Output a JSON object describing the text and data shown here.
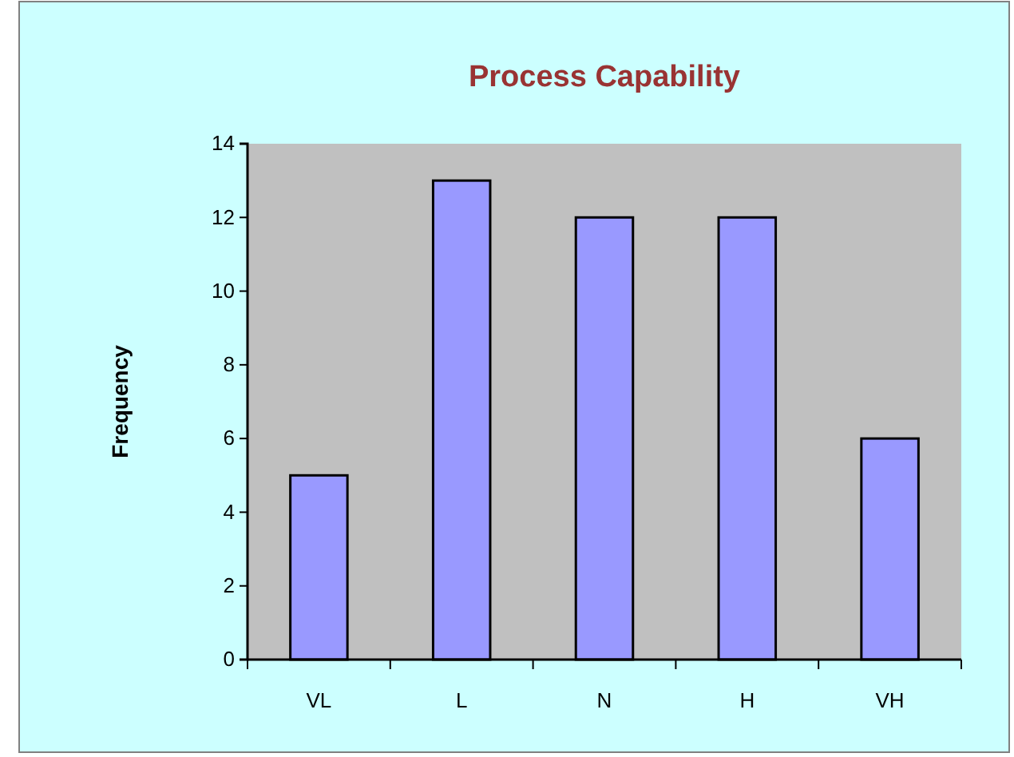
{
  "chart_data": {
    "type": "bar",
    "title": "Process Capability",
    "ylabel": "Frequency",
    "categories": [
      "VL",
      "L",
      "N",
      "H",
      "VH"
    ],
    "values": [
      5,
      13,
      12,
      12,
      6
    ],
    "color": "#9999ff",
    "ylim": [
      0,
      14
    ],
    "yticks": [
      0,
      2,
      4,
      6,
      8,
      10,
      12,
      14
    ],
    "grid": false
  }
}
